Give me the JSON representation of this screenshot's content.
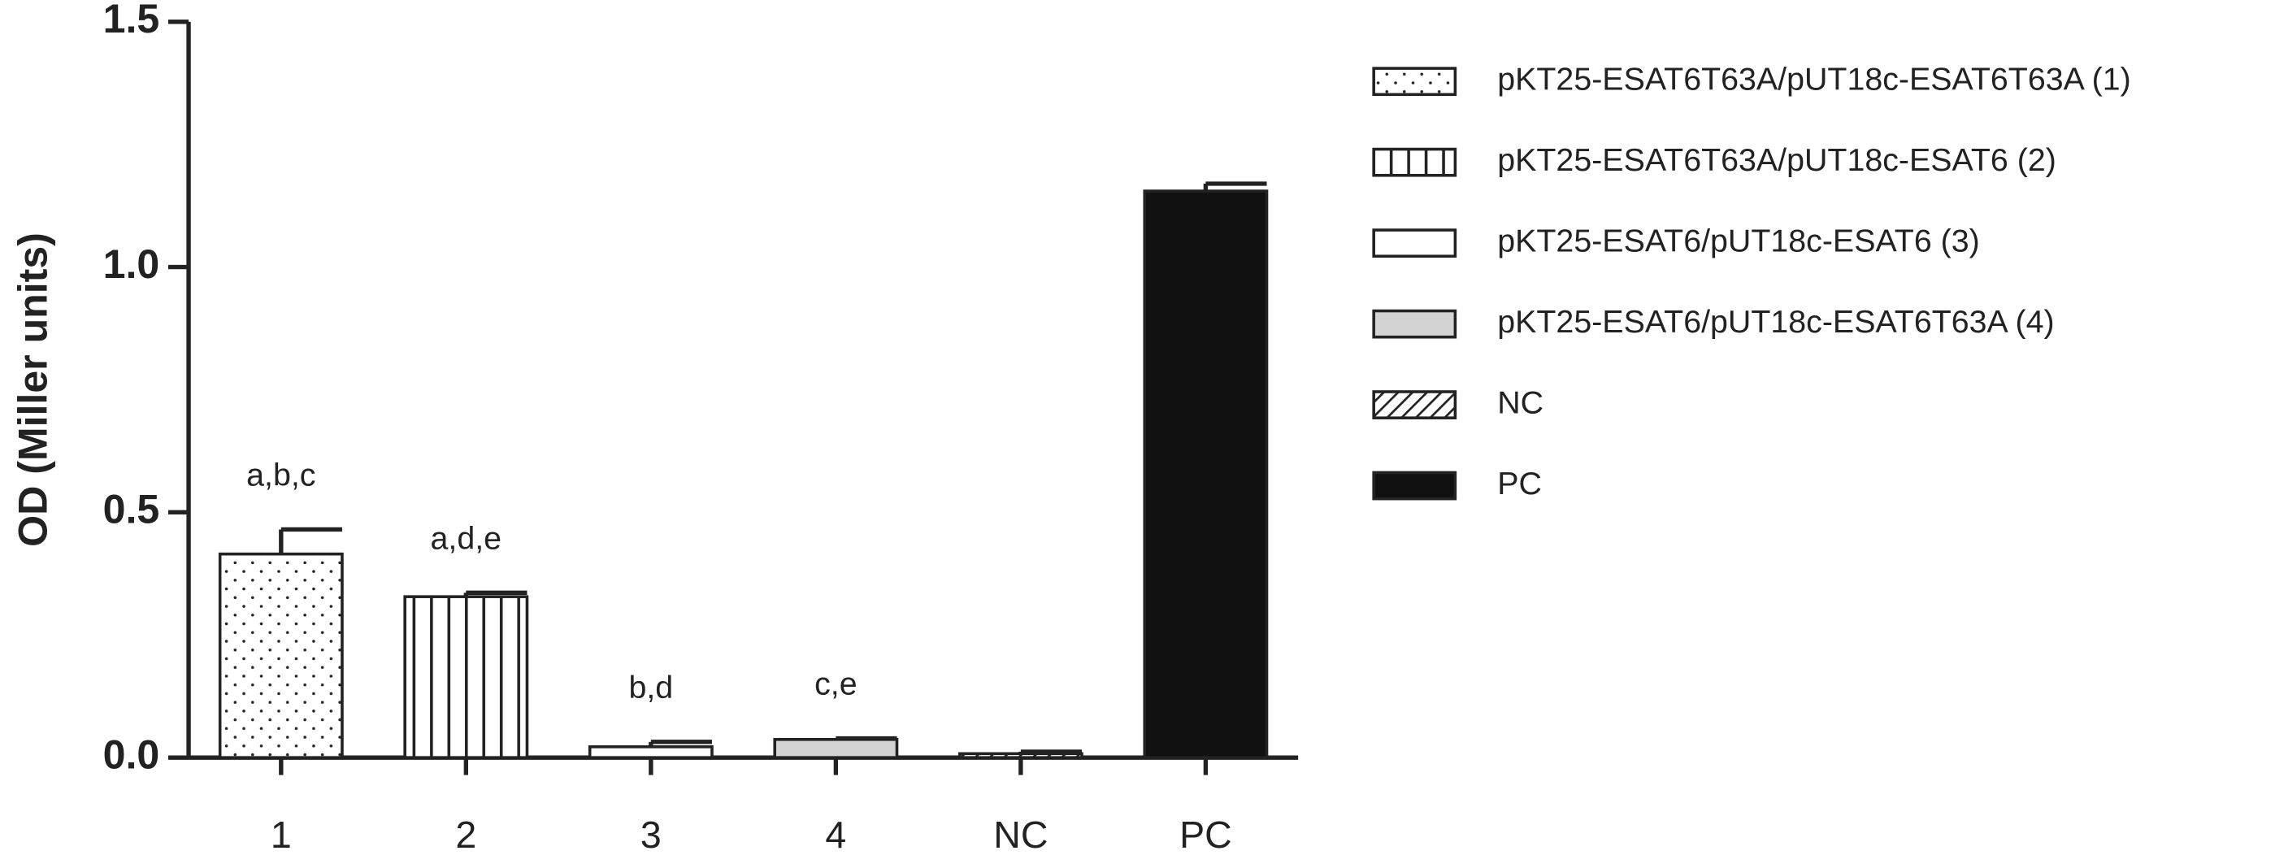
{
  "chart_data": {
    "type": "bar",
    "ylabel": "OD (Miller units)",
    "categories": [
      "1",
      "2",
      "3",
      "4",
      "NC",
      "PC"
    ],
    "values": [
      0.415,
      0.328,
      0.022,
      0.037,
      0.008,
      1.155
    ],
    "errors": [
      0.05,
      0.008,
      0.01,
      0.002,
      0.004,
      0.015
    ],
    "annotations": [
      "a,b,c",
      "a,d,e",
      "b,d",
      "c,e",
      null,
      null
    ],
    "series": [
      {
        "name": "pKT25-ESAT6T63A/pUT18c-ESAT6T63A (1)",
        "fill": "dots"
      },
      {
        "name": "pKT25-ESAT6T63A/pUT18c-ESAT6 (2)",
        "fill": "vlines"
      },
      {
        "name": "pKT25-ESAT6/pUT18c-ESAT6 (3)",
        "fill": "#ffffff"
      },
      {
        "name": "pKT25-ESAT6/pUT18c-ESAT6T63A (4)",
        "fill": "#d3d3d3"
      },
      {
        "name": "NC",
        "fill": "hatch"
      },
      {
        "name": "PC",
        "fill": "#111111"
      }
    ],
    "ylim": [
      0,
      1.5
    ],
    "yticks": [
      {
        "value": 0,
        "label": "0.0"
      },
      {
        "value": 0.5,
        "label": "0.5"
      },
      {
        "value": 1,
        "label": "1.0"
      },
      {
        "value": 1.5,
        "label": "1.5"
      }
    ]
  }
}
